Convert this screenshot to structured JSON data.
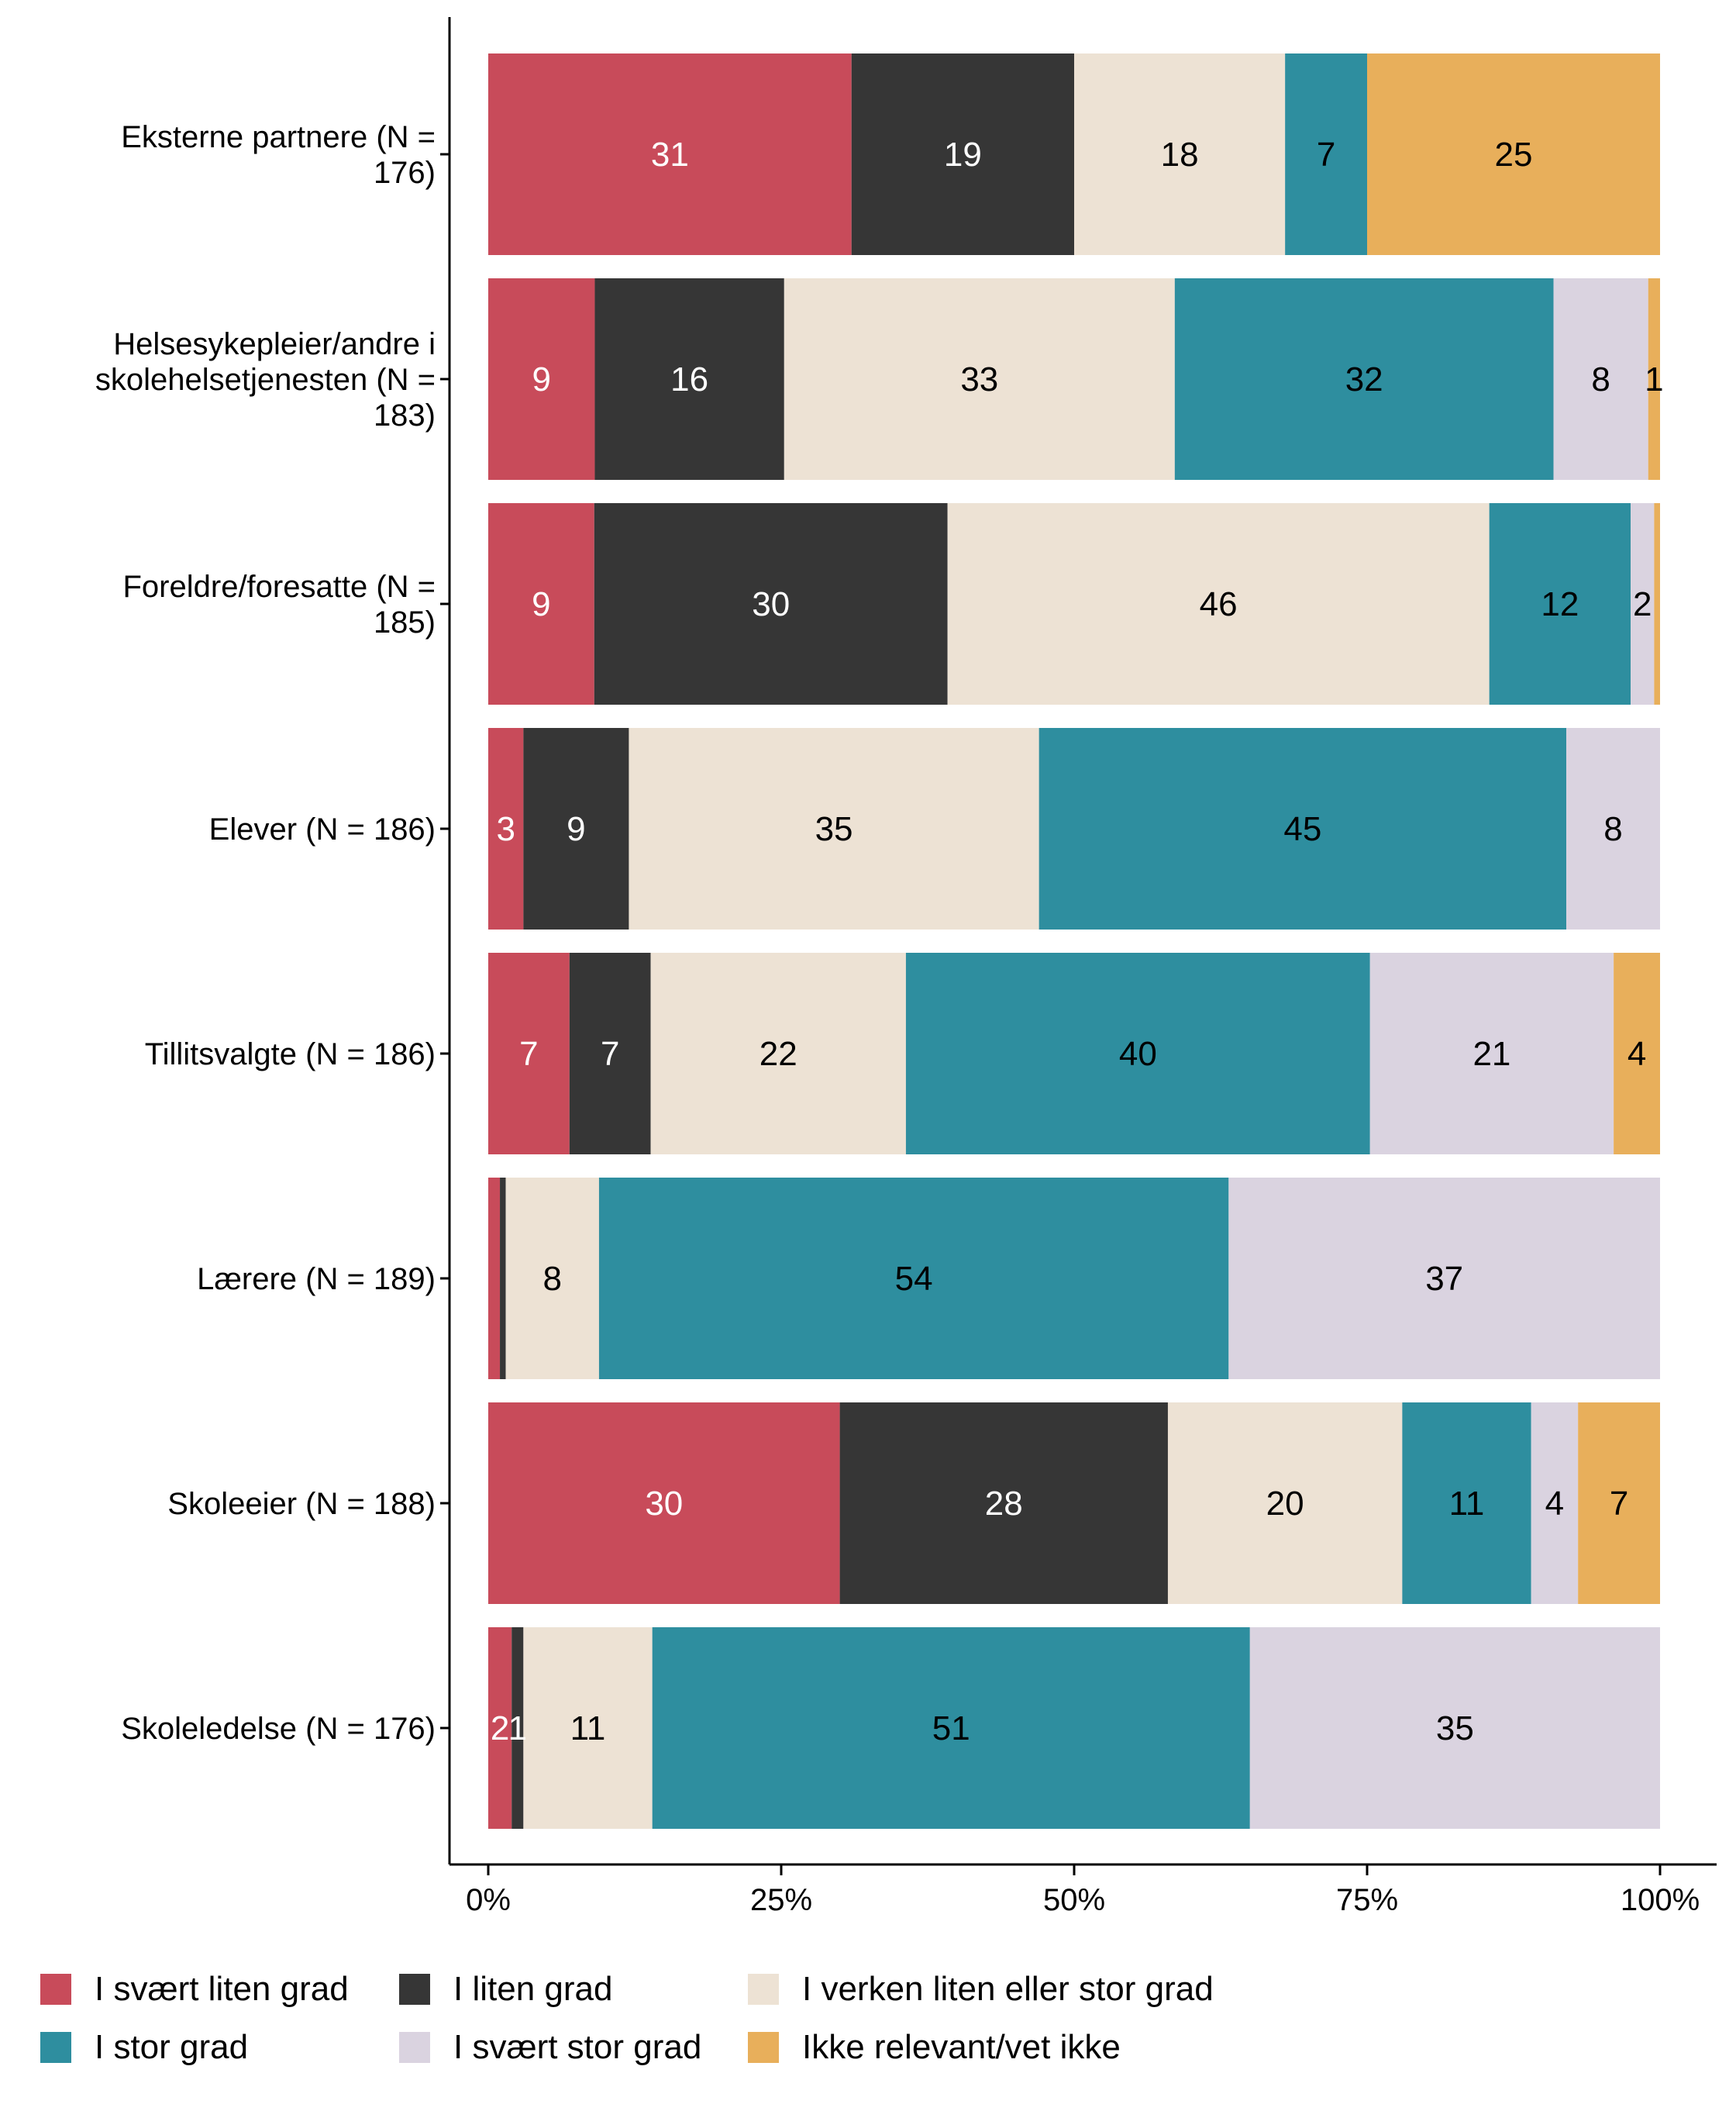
{
  "chart_data": {
    "type": "bar",
    "orientation": "horizontal",
    "stacked": true,
    "categories": [
      [
        "Eksterne partnere (N =",
        "176)"
      ],
      [
        "Helsesykepleier/andre i",
        "skolehelsetjenesten (N =",
        "183)"
      ],
      [
        "Foreldre/foresatte (N =",
        "185)"
      ],
      [
        "Elever (N = 186)"
      ],
      [
        "Tillitsvalgte (N = 186)"
      ],
      [
        "Lærere (N = 189)"
      ],
      [
        "Skoleeier (N = 188)"
      ],
      [
        "Skoleledelse (N = 176)"
      ]
    ],
    "series": [
      {
        "name": "I svært liten grad",
        "color": "#C84B5A",
        "text_color": "#ffffff",
        "values": [
          31,
          9,
          9,
          3,
          7,
          1,
          30,
          2
        ]
      },
      {
        "name": "I liten grad",
        "color": "#363636",
        "text_color": "#ffffff",
        "values": [
          19,
          16,
          30,
          9,
          7,
          0.5,
          28,
          1
        ]
      },
      {
        "name": "I verken liten eller stor grad",
        "color": "#EDE2D4",
        "text_color": "#000000",
        "values": [
          18,
          33,
          46,
          35,
          22,
          8,
          20,
          11
        ]
      },
      {
        "name": "I stor grad",
        "color": "#2E8E9F",
        "text_color": "#000000",
        "values": [
          7,
          32,
          12,
          45,
          40,
          54,
          11,
          51
        ]
      },
      {
        "name": "I svært stor grad",
        "color": "#DAD3E0",
        "text_color": "#000000",
        "values": [
          0,
          8,
          2,
          8,
          21,
          37,
          4,
          35
        ]
      },
      {
        "name": "Ikke relevant/vet ikke",
        "color": "#E8AF5B",
        "text_color": "#000000",
        "values": [
          25,
          1,
          0.5,
          0,
          4,
          0,
          7,
          0
        ]
      }
    ],
    "data_labels": [
      [
        "31",
        "19",
        "18",
        "7",
        "",
        "25"
      ],
      [
        "9",
        "16",
        "33",
        "32",
        "8",
        "1"
      ],
      [
        "9",
        "30",
        "46",
        "12",
        "2",
        ""
      ],
      [
        "3",
        "9",
        "35",
        "45",
        "8",
        ""
      ],
      [
        "7",
        "7",
        "22",
        "40",
        "21",
        "4"
      ],
      [
        "",
        "",
        "8",
        "54",
        "37",
        ""
      ],
      [
        "30",
        "28",
        "20",
        "11",
        "4",
        "7"
      ],
      [
        "2",
        "1",
        "11",
        "51",
        "35",
        ""
      ]
    ],
    "x_ticks": [
      "0%",
      "25%",
      "50%",
      "75%",
      "100%"
    ],
    "xlim": [
      0,
      100
    ],
    "xlabel": "",
    "ylabel": "",
    "grid": false,
    "legend_position": "bottom"
  }
}
